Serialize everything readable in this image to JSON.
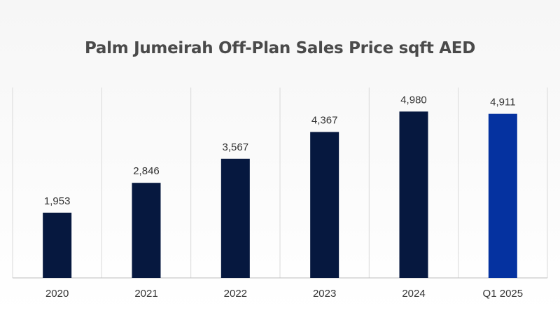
{
  "chart_data": {
    "type": "bar",
    "title": "Palm Jumeirah Off-Plan Sales Price sqft AED",
    "xlabel": "",
    "ylabel": "",
    "categories": [
      "2020",
      "2021",
      "2022",
      "2023",
      "2024",
      "Q1 2025"
    ],
    "values": [
      1953,
      2846,
      3567,
      4367,
      4980,
      4911
    ],
    "value_labels": [
      "1,953",
      "2,846",
      "3,567",
      "4,367",
      "4,980",
      "4,911"
    ],
    "bar_colors": [
      "#06183f",
      "#06183f",
      "#06183f",
      "#06183f",
      "#06183f",
      "#0532a0"
    ],
    "ylim": [
      0,
      5700
    ],
    "grid": "vertical separators",
    "legend": "none"
  }
}
